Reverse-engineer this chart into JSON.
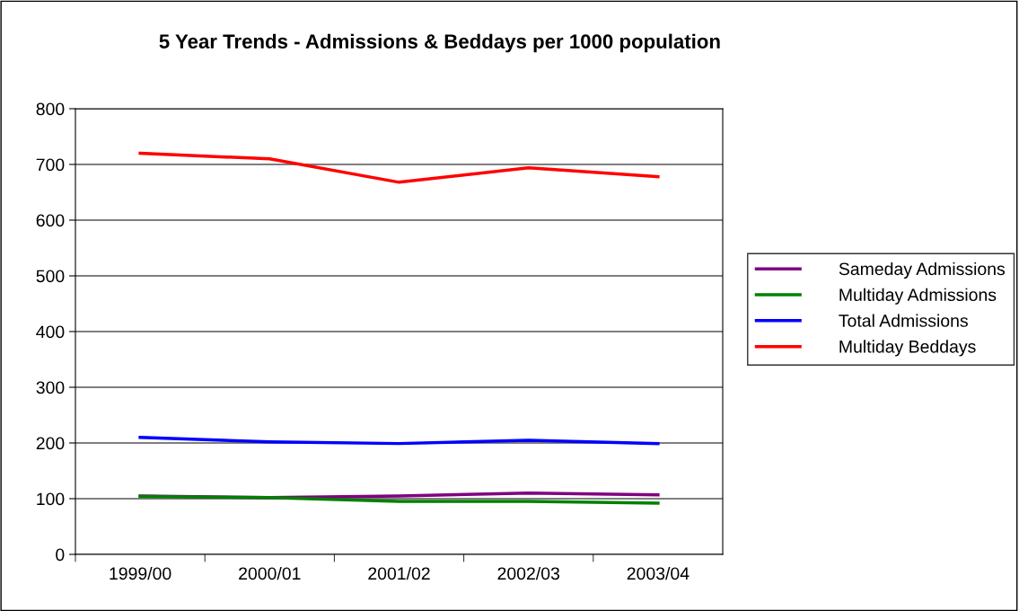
{
  "chart_data": {
    "type": "line",
    "title": "5 Year Trends - Admissions & Beddays per 1000 population",
    "categories": [
      "1999/00",
      "2000/01",
      "2001/02",
      "2002/03",
      "2003/04"
    ],
    "series": [
      {
        "name": "Sameday Admissions",
        "color": "#800080",
        "values": [
          105,
          102,
          105,
          110,
          107
        ]
      },
      {
        "name": "Multiday Admissions",
        "color": "#008000",
        "values": [
          104,
          102,
          95,
          95,
          92
        ]
      },
      {
        "name": "Total Admissions",
        "color": "#0000ff",
        "values": [
          210,
          202,
          199,
          205,
          199
        ]
      },
      {
        "name": "Multiday Beddays",
        "color": "#ff0000",
        "values": [
          720,
          710,
          668,
          694,
          678
        ]
      }
    ],
    "ylim": [
      0,
      800
    ],
    "yticks": [
      0,
      100,
      200,
      300,
      400,
      500,
      600,
      700,
      800
    ],
    "grid": "y",
    "legend": "right",
    "marker": "none",
    "line_style": "solid"
  }
}
